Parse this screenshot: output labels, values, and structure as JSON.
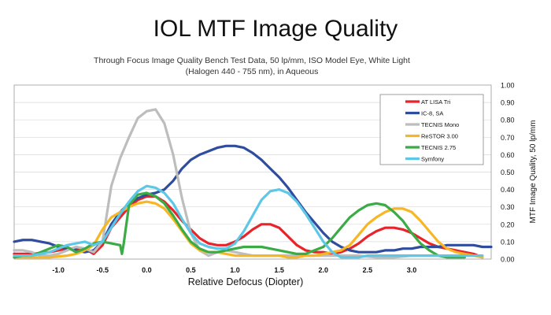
{
  "chart_data": {
    "type": "line",
    "title": "IOL MTF Image Quality",
    "subtitle": "Through Focus Image Quality Bench Test Data, 50 lp/mm, ISO Model Eye, White Light (Halogen 440 - 755 nm), in Aqueous",
    "xlabel": "Relative Defocus (Diopter)",
    "ylabel": "MTF Image Quality, 50 lp/mm",
    "xlim": [
      -1.5,
      3.9
    ],
    "ylim": [
      0,
      1.0
    ],
    "x_ticks": [
      "-1.0",
      "-0.5",
      "0.0",
      "0.5",
      "1.0",
      "1.5",
      "2.0",
      "2.5",
      "3.0"
    ],
    "y_ticks": [
      "0.00",
      "0.10",
      "0.20",
      "0.30",
      "0.40",
      "0.50",
      "0.60",
      "0.70",
      "0.80",
      "0.90",
      "1.00"
    ],
    "grid": true,
    "legend_position": "top-right",
    "series": [
      {
        "name": "AT LISA Tri",
        "color": "#e8232a",
        "x": [
          -1.5,
          -1.3,
          -1.1,
          -0.9,
          -0.7,
          -0.6,
          -0.5,
          -0.4,
          -0.3,
          -0.2,
          -0.1,
          0.0,
          0.1,
          0.2,
          0.3,
          0.4,
          0.5,
          0.6,
          0.7,
          0.8,
          0.9,
          1.0,
          1.1,
          1.2,
          1.3,
          1.4,
          1.5,
          1.6,
          1.7,
          1.8,
          1.9,
          2.0,
          2.1,
          2.2,
          2.3,
          2.4,
          2.5,
          2.6,
          2.7,
          2.8,
          2.9,
          3.0,
          3.1,
          3.2,
          3.3,
          3.4,
          3.5,
          3.6,
          3.7,
          3.8
        ],
        "y": [
          0.03,
          0.03,
          0.04,
          0.06,
          0.06,
          0.03,
          0.08,
          0.18,
          0.24,
          0.3,
          0.34,
          0.36,
          0.36,
          0.33,
          0.28,
          0.22,
          0.17,
          0.12,
          0.09,
          0.08,
          0.08,
          0.1,
          0.13,
          0.17,
          0.2,
          0.2,
          0.18,
          0.13,
          0.08,
          0.05,
          0.04,
          0.04,
          0.03,
          0.04,
          0.06,
          0.09,
          0.13,
          0.16,
          0.18,
          0.18,
          0.17,
          0.15,
          0.12,
          0.09,
          0.07,
          0.06,
          0.05,
          0.04,
          0.03,
          0.01
        ]
      },
      {
        "name": "IC-8, SA",
        "color": "#2f4d9e",
        "x": [
          -1.5,
          -1.4,
          -1.3,
          -1.2,
          -1.1,
          -1.0,
          -0.9,
          -0.8,
          -0.7,
          -0.6,
          -0.5,
          -0.4,
          -0.3,
          -0.2,
          -0.1,
          0.0,
          0.1,
          0.2,
          0.3,
          0.4,
          0.5,
          0.6,
          0.7,
          0.8,
          0.9,
          1.0,
          1.1,
          1.2,
          1.3,
          1.4,
          1.5,
          1.6,
          1.7,
          1.8,
          1.9,
          2.0,
          2.1,
          2.2,
          2.3,
          2.4,
          2.5,
          2.6,
          2.7,
          2.8,
          2.9,
          3.0,
          3.1,
          3.2,
          3.3,
          3.4,
          3.5,
          3.6,
          3.7,
          3.8,
          3.9
        ],
        "y": [
          0.1,
          0.11,
          0.11,
          0.1,
          0.09,
          0.07,
          0.06,
          0.05,
          0.04,
          0.05,
          0.1,
          0.2,
          0.27,
          0.32,
          0.35,
          0.37,
          0.38,
          0.4,
          0.45,
          0.52,
          0.57,
          0.6,
          0.62,
          0.64,
          0.65,
          0.65,
          0.64,
          0.61,
          0.57,
          0.52,
          0.47,
          0.41,
          0.34,
          0.27,
          0.21,
          0.15,
          0.1,
          0.07,
          0.05,
          0.04,
          0.04,
          0.04,
          0.05,
          0.05,
          0.06,
          0.06,
          0.07,
          0.07,
          0.07,
          0.08,
          0.08,
          0.08,
          0.08,
          0.07,
          0.07
        ]
      },
      {
        "name": "TECNIS Mono",
        "color": "#bdbdbd",
        "x": [
          -1.5,
          -1.4,
          -1.3,
          -1.2,
          -1.1,
          -1.0,
          -0.9,
          -0.8,
          -0.7,
          -0.6,
          -0.5,
          -0.4,
          -0.3,
          -0.2,
          -0.1,
          0.0,
          0.1,
          0.2,
          0.3,
          0.4,
          0.5,
          0.6,
          0.7,
          0.8,
          0.9,
          1.0,
          1.1,
          1.2,
          1.3,
          1.4,
          1.5,
          1.6,
          1.7,
          1.8,
          1.9,
          2.0,
          2.2,
          2.4,
          2.6,
          2.8,
          3.0,
          3.2,
          3.4,
          3.6,
          3.8
        ],
        "y": [
          0.05,
          0.05,
          0.04,
          0.02,
          0.02,
          0.03,
          0.05,
          0.07,
          0.06,
          0.04,
          0.1,
          0.42,
          0.58,
          0.7,
          0.81,
          0.85,
          0.86,
          0.78,
          0.6,
          0.35,
          0.15,
          0.05,
          0.02,
          0.04,
          0.05,
          0.04,
          0.03,
          0.02,
          0.02,
          0.02,
          0.02,
          0.02,
          0.02,
          0.02,
          0.02,
          0.02,
          0.02,
          0.02,
          0.01,
          0.01,
          0.02,
          0.02,
          0.02,
          0.02,
          0.02
        ]
      },
      {
        "name": "ReSTOR 3.00",
        "color": "#f7b724",
        "x": [
          -1.5,
          -1.3,
          -1.1,
          -0.9,
          -0.8,
          -0.7,
          -0.6,
          -0.5,
          -0.4,
          -0.3,
          -0.2,
          -0.1,
          0.0,
          0.1,
          0.2,
          0.3,
          0.4,
          0.5,
          0.6,
          0.7,
          0.8,
          0.9,
          1.0,
          1.1,
          1.2,
          1.3,
          1.4,
          1.5,
          1.6,
          1.7,
          1.8,
          1.9,
          2.0,
          2.1,
          2.2,
          2.3,
          2.4,
          2.5,
          2.6,
          2.7,
          2.8,
          2.9,
          3.0,
          3.1,
          3.2,
          3.3,
          3.4,
          3.5,
          3.6,
          3.7,
          3.8
        ],
        "y": [
          0.01,
          0.01,
          0.01,
          0.02,
          0.03,
          0.05,
          0.08,
          0.17,
          0.24,
          0.27,
          0.3,
          0.32,
          0.33,
          0.32,
          0.29,
          0.23,
          0.16,
          0.09,
          0.05,
          0.04,
          0.04,
          0.03,
          0.02,
          0.02,
          0.02,
          0.02,
          0.02,
          0.02,
          0.01,
          0.01,
          0.02,
          0.02,
          0.03,
          0.04,
          0.05,
          0.08,
          0.14,
          0.2,
          0.24,
          0.27,
          0.29,
          0.29,
          0.27,
          0.22,
          0.16,
          0.1,
          0.06,
          0.04,
          0.03,
          0.02,
          0.01
        ]
      },
      {
        "name": "TECNIS 2.75",
        "color": "#3aab45",
        "x": [
          -1.5,
          -1.4,
          -1.3,
          -1.2,
          -1.1,
          -1.0,
          -0.9,
          -0.8,
          -0.7,
          -0.6,
          -0.5,
          -0.4,
          -0.3,
          -0.28,
          -0.26,
          -0.2,
          -0.1,
          0.0,
          0.1,
          0.2,
          0.3,
          0.4,
          0.5,
          0.6,
          0.7,
          0.8,
          0.9,
          1.0,
          1.1,
          1.2,
          1.3,
          1.4,
          1.5,
          1.6,
          1.7,
          1.8,
          1.9,
          2.0,
          2.1,
          2.2,
          2.3,
          2.4,
          2.5,
          2.6,
          2.7,
          2.8,
          2.9,
          3.0,
          3.1,
          3.2,
          3.3,
          3.4,
          3.5,
          3.6
        ],
        "y": [
          0.01,
          0.02,
          0.02,
          0.04,
          0.06,
          0.08,
          0.07,
          0.04,
          0.06,
          0.09,
          0.1,
          0.09,
          0.08,
          0.03,
          0.09,
          0.31,
          0.37,
          0.38,
          0.36,
          0.32,
          0.25,
          0.17,
          0.1,
          0.06,
          0.04,
          0.04,
          0.05,
          0.06,
          0.07,
          0.07,
          0.07,
          0.06,
          0.05,
          0.04,
          0.03,
          0.03,
          0.05,
          0.07,
          0.12,
          0.18,
          0.24,
          0.28,
          0.31,
          0.32,
          0.31,
          0.27,
          0.22,
          0.15,
          0.09,
          0.05,
          0.02,
          0.01,
          0.01,
          0.01
        ]
      },
      {
        "name": "Symfony",
        "color": "#5ec7e6",
        "x": [
          -1.5,
          -1.4,
          -1.3,
          -1.2,
          -1.1,
          -1.0,
          -0.9,
          -0.8,
          -0.7,
          -0.6,
          -0.5,
          -0.4,
          -0.3,
          -0.2,
          -0.1,
          0.0,
          0.1,
          0.2,
          0.3,
          0.4,
          0.5,
          0.6,
          0.7,
          0.8,
          0.9,
          1.0,
          1.1,
          1.2,
          1.3,
          1.4,
          1.5,
          1.6,
          1.7,
          1.8,
          1.9,
          2.0,
          2.1,
          2.2,
          2.3,
          2.4,
          2.5,
          2.6,
          2.8,
          3.0,
          3.2,
          3.4,
          3.6,
          3.8
        ],
        "y": [
          0.02,
          0.02,
          0.02,
          0.03,
          0.04,
          0.06,
          0.08,
          0.09,
          0.1,
          0.08,
          0.1,
          0.18,
          0.26,
          0.33,
          0.39,
          0.42,
          0.41,
          0.38,
          0.32,
          0.23,
          0.15,
          0.09,
          0.07,
          0.06,
          0.06,
          0.09,
          0.16,
          0.25,
          0.34,
          0.39,
          0.4,
          0.38,
          0.33,
          0.26,
          0.18,
          0.1,
          0.04,
          0.01,
          0.01,
          0.01,
          0.02,
          0.02,
          0.02,
          0.02,
          0.02,
          0.02,
          0.02,
          0.02
        ]
      }
    ]
  }
}
